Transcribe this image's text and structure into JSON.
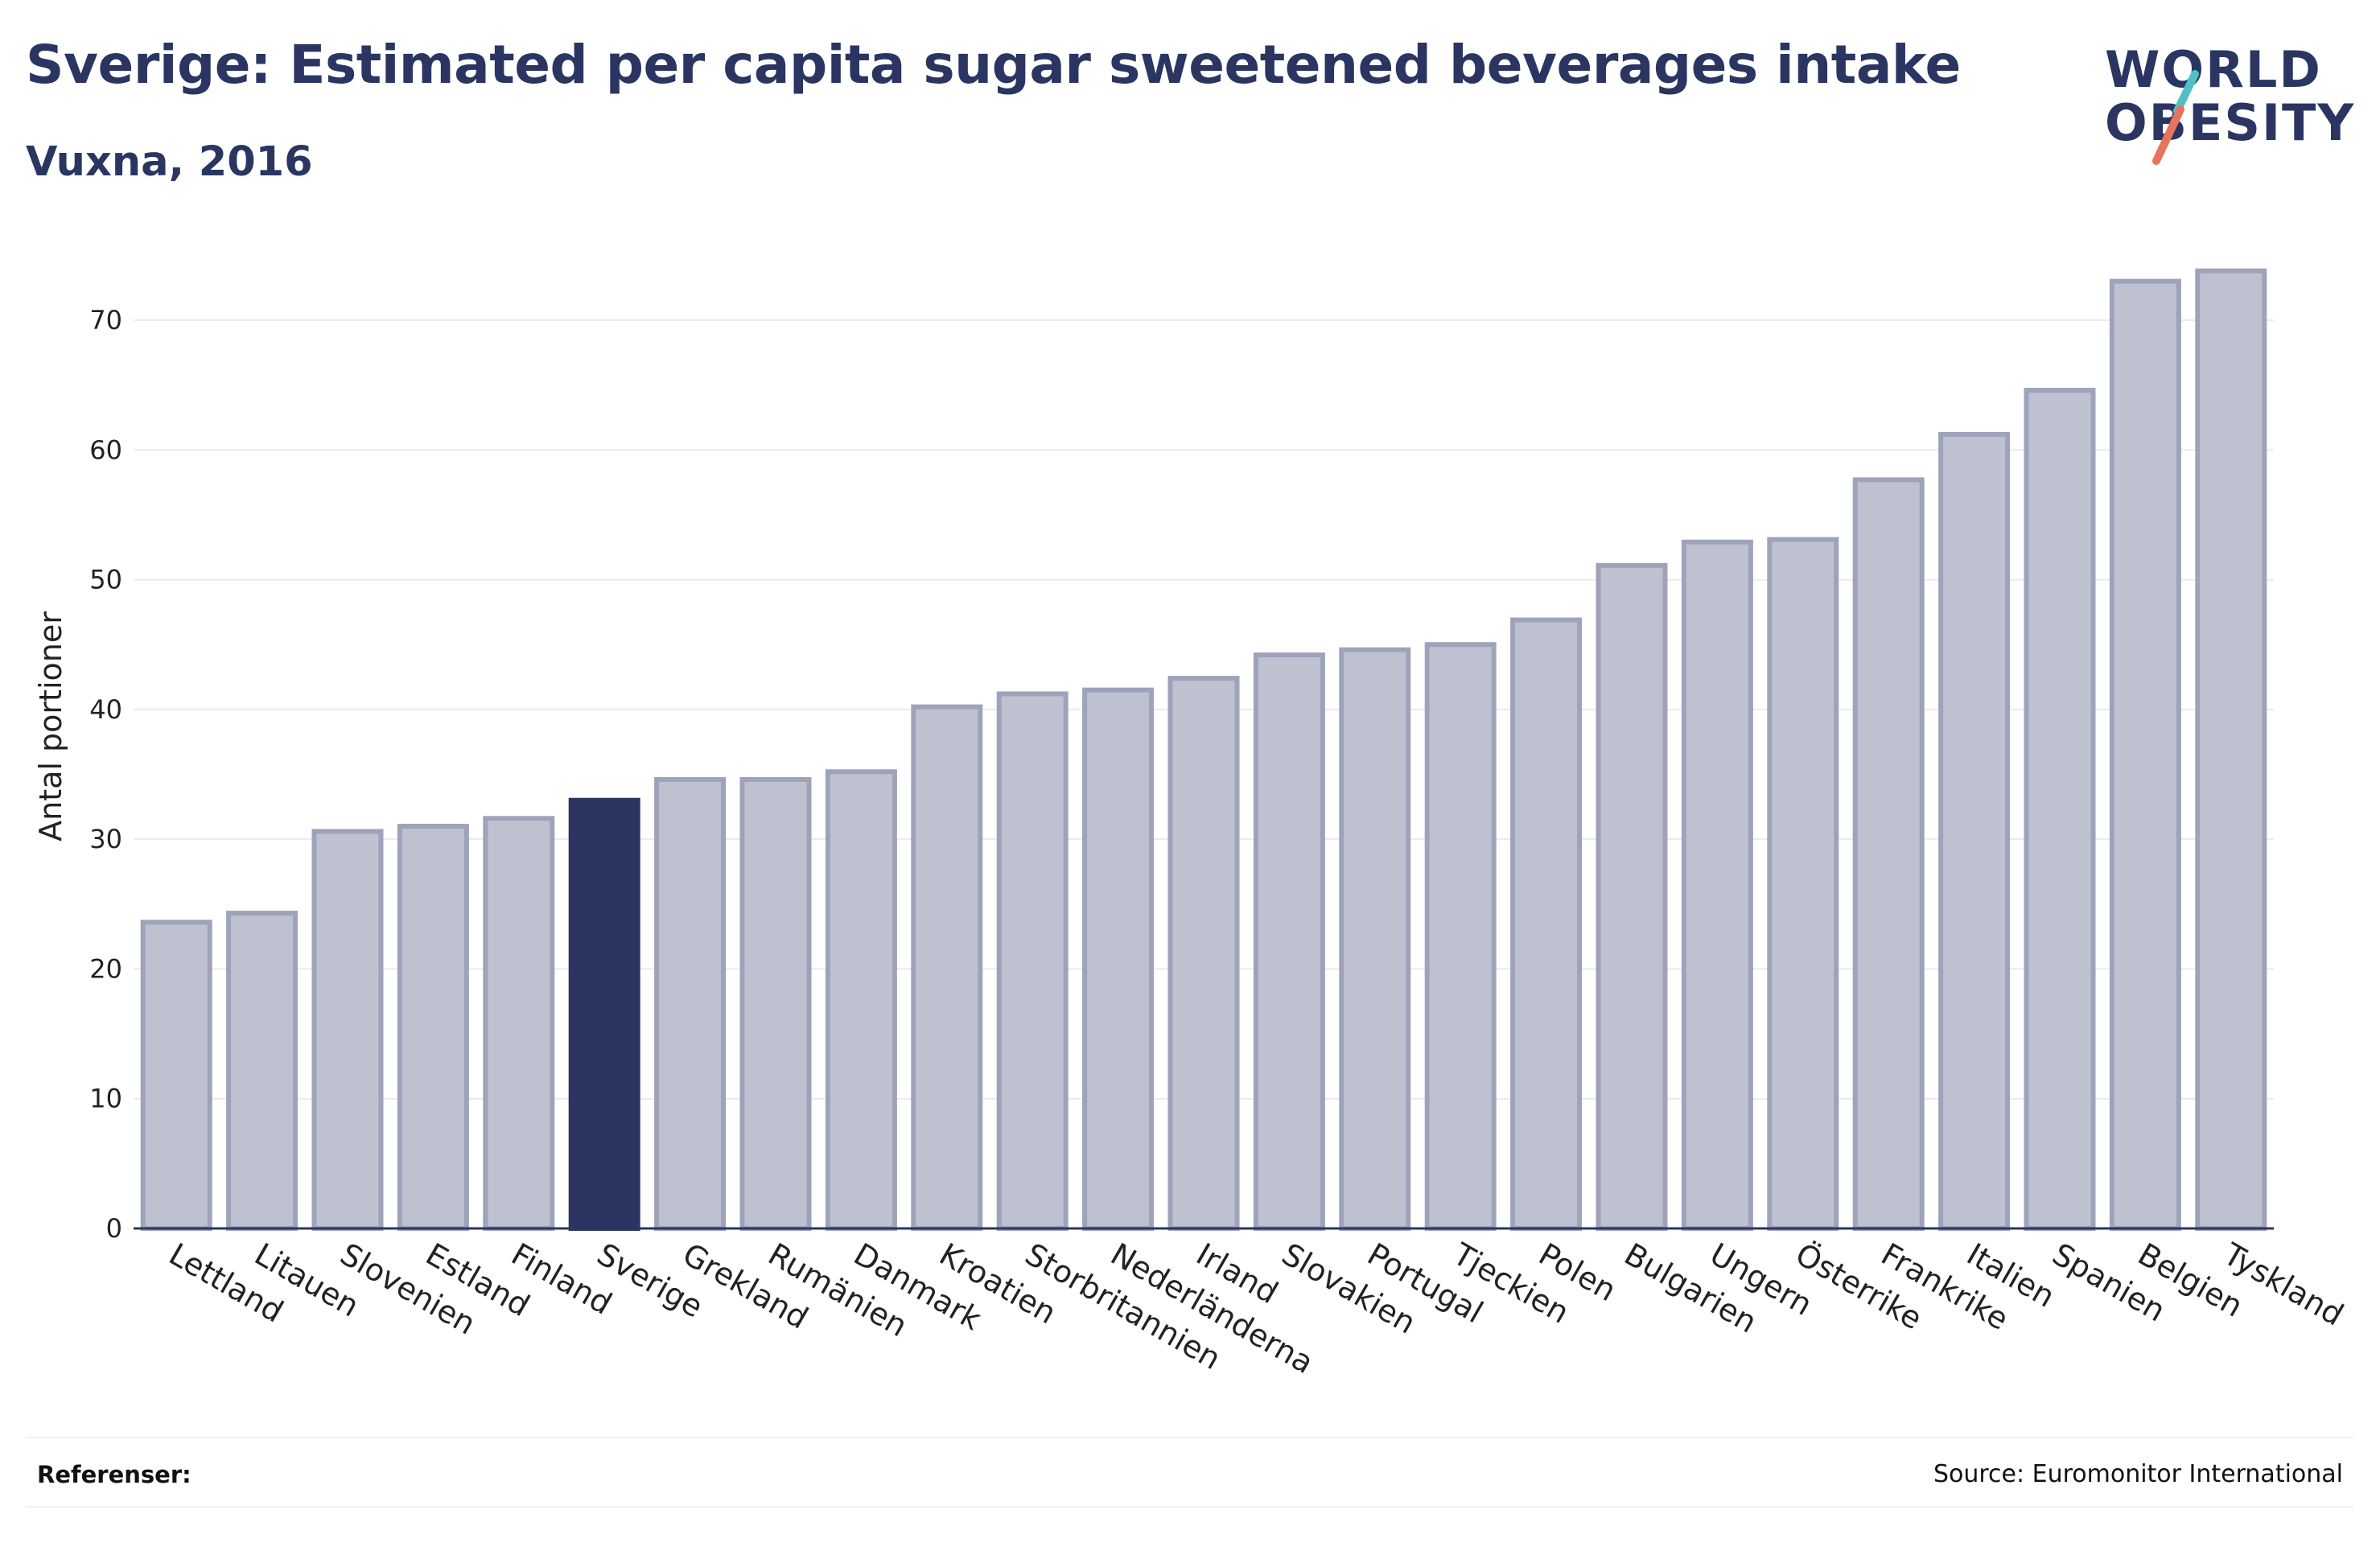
{
  "header": {
    "title": "Sverige: Estimated per capita sugar sweetened beverages intake",
    "subtitle": "Vuxna, 2016"
  },
  "logo": {
    "line1": "WORLD",
    "line2": "OBESITY",
    "slash_colors": [
      "#4fc1c4",
      "#e8735f"
    ]
  },
  "footer": {
    "references_label": "Referenser:",
    "source": "Source: Euromonitor International"
  },
  "colors": {
    "bar": "#bec1d0",
    "bar_border": "#9ea3ba",
    "highlight": "#2a3561",
    "axis": "#2a3561",
    "grid": "#e9ebf0",
    "text": "#222222"
  },
  "chart_data": {
    "type": "bar",
    "ylabel": "Antal portioner",
    "ylim": [
      0,
      76
    ],
    "yticks": [
      0,
      10,
      20,
      30,
      40,
      50,
      60,
      70
    ],
    "grid": true,
    "highlight": "Sverige",
    "categories": [
      "Lettland",
      "Litauen",
      "Slovenien",
      "Estland",
      "Finland",
      "Sverige",
      "Grekland",
      "Rumänien",
      "Danmark",
      "Kroatien",
      "Storbritannien",
      "Nederländerna",
      "Irland",
      "Slovakien",
      "Portugal",
      "Tjeckien",
      "Polen",
      "Bulgarien",
      "Ungern",
      "Österrike",
      "Frankrike",
      "Italien",
      "Spanien",
      "Belgien",
      "Tyskland"
    ],
    "values": [
      23.6,
      24.3,
      30.6,
      31.0,
      31.6,
      33.0,
      34.6,
      34.6,
      35.2,
      40.2,
      41.2,
      41.5,
      42.4,
      44.2,
      44.6,
      45.0,
      46.9,
      51.1,
      52.9,
      53.1,
      57.7,
      61.2,
      64.6,
      73.0,
      73.8
    ]
  }
}
